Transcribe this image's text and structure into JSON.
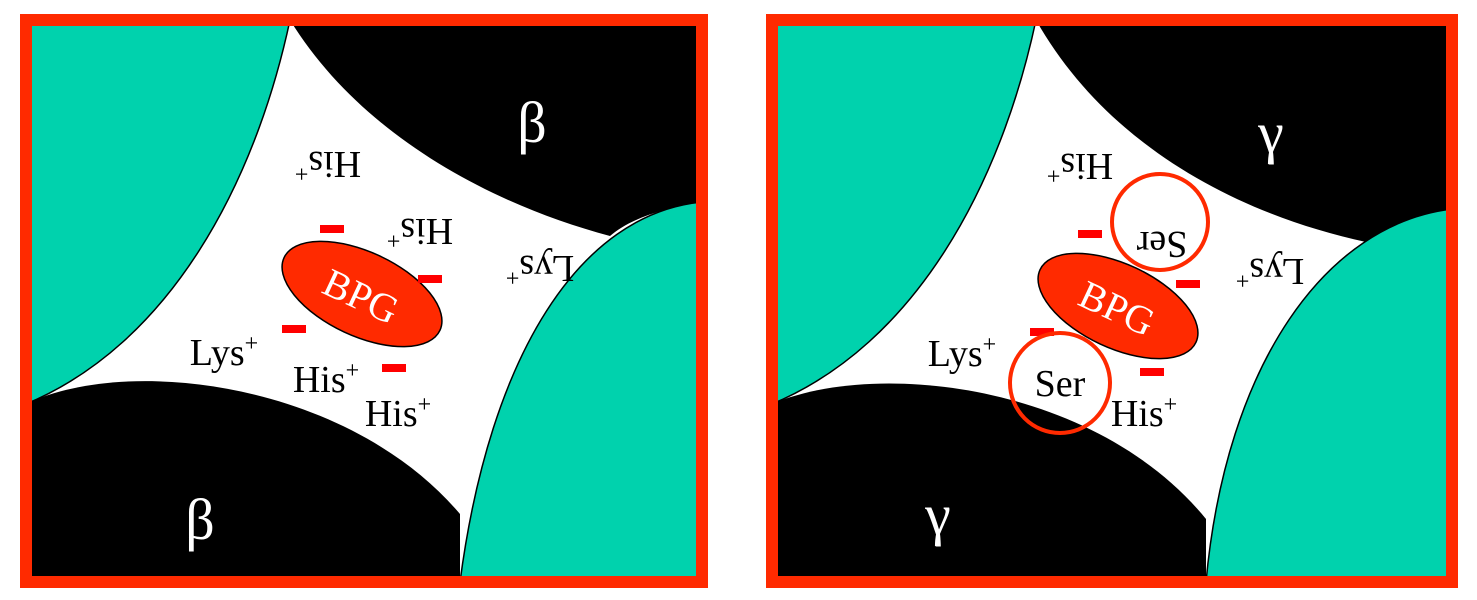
{
  "colors": {
    "frame": "#ff2a00",
    "subunit_dark": "#000000",
    "subunit_teal": "#00d2ad",
    "cavity": "#ffffff",
    "bpg": "#ff2a00",
    "charge": "#ff0000"
  },
  "panels": [
    {
      "id": "left",
      "subunit_label_top": "β",
      "subunit_label_bottom": "β",
      "ligand": "BPG",
      "upper_residues": [
        "His",
        "His",
        "Lys"
      ],
      "lower_residues": [
        "Lys",
        "His",
        "His"
      ],
      "charge_sign": "+",
      "charge_count": 4
    },
    {
      "id": "right",
      "subunit_label_top": "γ",
      "subunit_label_bottom": "γ",
      "ligand": "BPG",
      "upper_residues": [
        "His",
        "Ser",
        "Lys"
      ],
      "lower_residues": [
        "Lys",
        "Ser",
        "His"
      ],
      "charge_sign": "+",
      "charge_count": 4
    }
  ]
}
